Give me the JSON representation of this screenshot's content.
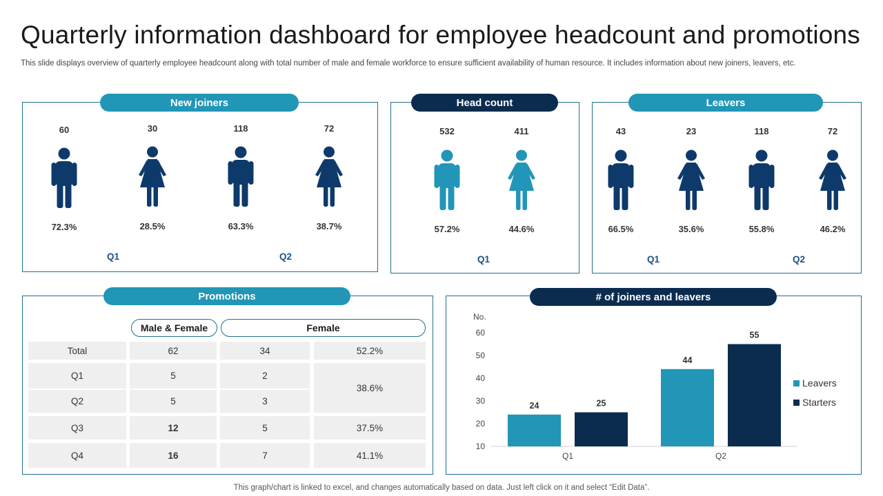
{
  "page": {
    "title": "Quarterly information dashboard for employee headcount and promotions",
    "subtitle": "This slide displays overview of quarterly employee headcount along with total number of male and female workforce to ensure sufficient availability of human resource. It includes information about new joiners, leavers, etc.",
    "footer": "This graph/chart is linked to excel,  and changes automatically based on data. Just left click on it and select “Edit Data”."
  },
  "colors": {
    "teal": "#2196b6",
    "navy": "#0b2c4f",
    "figure_dark": "#0e3a6b",
    "figure_teal": "#2296b8"
  },
  "new_joiners": {
    "label": "New joiners",
    "items": [
      {
        "value": "60",
        "percent": "72.3%",
        "gender": "male"
      },
      {
        "value": "30",
        "percent": "28.5%",
        "gender": "female"
      },
      {
        "value": "118",
        "percent": "63.3%",
        "gender": "male"
      },
      {
        "value": "72",
        "percent": "38.7%",
        "gender": "female"
      }
    ],
    "quarters": [
      "Q1",
      "Q2"
    ]
  },
  "head_count": {
    "label": "Head count",
    "items": [
      {
        "value": "532",
        "percent": "57.2%",
        "gender": "male"
      },
      {
        "value": "411",
        "percent": "44.6%",
        "gender": "female"
      }
    ],
    "quarter": "Q1"
  },
  "leavers": {
    "label": "Leavers",
    "items": [
      {
        "value": "43",
        "percent": "66.5%",
        "gender": "male"
      },
      {
        "value": "23",
        "percent": "35.6%",
        "gender": "female"
      },
      {
        "value": "118",
        "percent": "55.8%",
        "gender": "male"
      },
      {
        "value": "72",
        "percent": "46.2%",
        "gender": "female"
      }
    ],
    "quarters": [
      "Q1",
      "Q2"
    ]
  },
  "promotions": {
    "label": "Promotions",
    "col_male_female": "Male & Female",
    "col_female": "Female",
    "rows": [
      {
        "label": "Total",
        "mf": "62",
        "female": "34",
        "pct": "52.2%"
      },
      {
        "label": "Q1",
        "mf": "5",
        "female": "2"
      },
      {
        "label": "Q2",
        "mf": "5",
        "female": "3"
      },
      {
        "label": "Q3",
        "mf": "12",
        "female": "5",
        "pct": "37.5%"
      },
      {
        "label": "Q4",
        "mf": "16",
        "female": "7",
        "pct": "41.1%"
      }
    ],
    "merged_pct_q1_q2": "38.6%"
  },
  "joiners_leavers": {
    "label": "# of joiners and leavers"
  },
  "chart_data": {
    "type": "bar",
    "title": "# of joiners and leavers",
    "ylabel": "No.",
    "xlabel": "",
    "categories": [
      "Q1",
      "Q2"
    ],
    "series": [
      {
        "name": "Leavers",
        "values": [
          24,
          44
        ],
        "color": "#2196b6"
      },
      {
        "name": "Starters",
        "values": [
          25,
          55
        ],
        "color": "#0b2c4f"
      }
    ],
    "ylim": [
      10,
      60
    ],
    "yticks": [
      10,
      20,
      30,
      40,
      50,
      60
    ],
    "legend": "right",
    "grid": false
  }
}
